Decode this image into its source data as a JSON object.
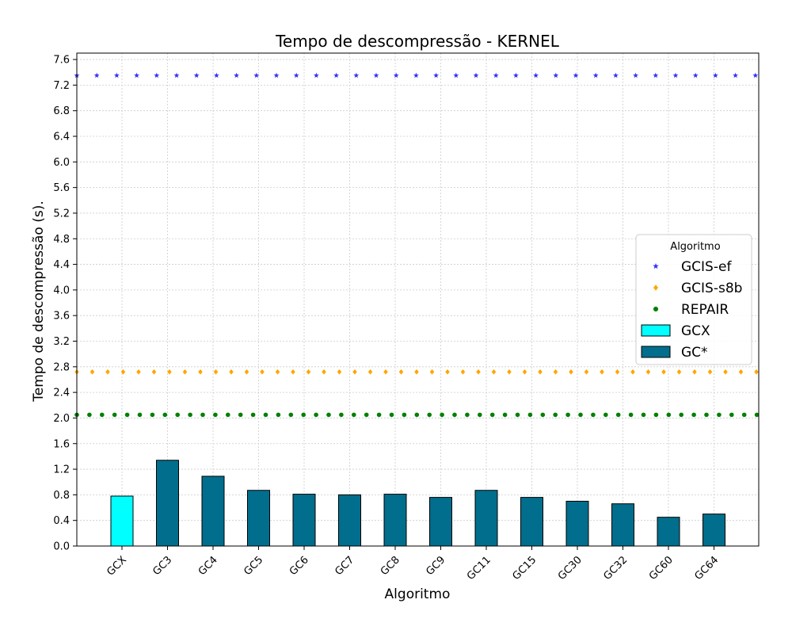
{
  "chart_data": {
    "type": "bar",
    "title": "Tempo de descompressão -  KERNEL",
    "xlabel": "Algoritmo",
    "ylabel": "Tempo de descompressão (s).",
    "ylim": [
      0,
      7.7
    ],
    "yticks": [
      "0.0",
      "0.4",
      "0.8",
      "1.2",
      "1.6",
      "2.0",
      "2.4",
      "2.8",
      "3.2",
      "3.6",
      "4.0",
      "4.4",
      "4.8",
      "5.2",
      "5.6",
      "6.0",
      "6.4",
      "6.8",
      "7.2",
      "7.6"
    ],
    "categories": [
      "GCX",
      "GC3",
      "GC4",
      "GC5",
      "GC6",
      "GC7",
      "GC8",
      "GC9",
      "GC11",
      "GC15",
      "GC30",
      "GC32",
      "GC60",
      "GC64"
    ],
    "bars": [
      {
        "name": "GCX",
        "color": "#00ffff",
        "values": [
          0.78,
          null,
          null,
          null,
          null,
          null,
          null,
          null,
          null,
          null,
          null,
          null,
          null,
          null
        ]
      },
      {
        "name": "GC*",
        "color": "#006e8c",
        "values": [
          null,
          1.34,
          1.09,
          0.87,
          0.81,
          0.8,
          0.81,
          0.76,
          0.87,
          0.76,
          0.7,
          0.66,
          0.45,
          0.5
        ]
      }
    ],
    "reference_lines": [
      {
        "name": "GCIS-ef",
        "value": 7.35,
        "color": "#3333ff",
        "marker": "star"
      },
      {
        "name": "GCIS-s8b",
        "value": 2.72,
        "color": "#ffa500",
        "marker": "diamond"
      },
      {
        "name": "REPAIR",
        "value": 2.05,
        "color": "#008000",
        "marker": "circle"
      }
    ],
    "legend": {
      "title": "Algoritmo",
      "placement": "right"
    },
    "grid": true
  }
}
